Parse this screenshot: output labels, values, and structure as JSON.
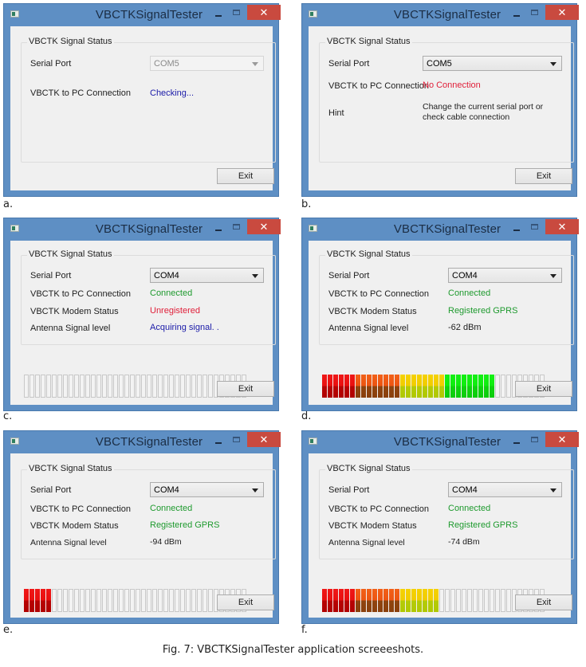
{
  "figure": {
    "caption": "Fig. 7: VBCTKSignalTester application screeeshots."
  },
  "common": {
    "window_title": "VBCTKSignalTester",
    "close_glyph": "✕",
    "group_title": "VBCTK Signal Status",
    "exit_label": "Exit",
    "signal_segments_total": 40,
    "colors": {
      "titlebar": "#5e8fc4",
      "close_button": "#c94a3f",
      "status_blue": "#1a1aa8",
      "status_red": "#e0203a",
      "status_green": "#1e9a2e"
    }
  },
  "panels": [
    {
      "label": "a.",
      "serial_port_label": "Serial Port",
      "serial_port_value": "COM5",
      "serial_port_disabled": true,
      "rows": [
        {
          "label": "VBCTK to PC Connection",
          "value": "Checking...",
          "color": "blue"
        }
      ],
      "signal_bar": null
    },
    {
      "label": "b.",
      "serial_port_label": "Serial Port",
      "serial_port_value": "COM5",
      "serial_port_disabled": false,
      "rows": [
        {
          "label": "VBCTK to PC Connection",
          "value": "No Connection",
          "color": "red"
        },
        {
          "label": "Hint",
          "value_line1": "Change the current serial port or",
          "value_line2": "check cable connection",
          "color": "black"
        }
      ],
      "signal_bar": null
    },
    {
      "label": "c.",
      "serial_port_label": "Serial Port",
      "serial_port_value": "COM4",
      "rows": [
        {
          "label": "VBCTK to PC Connection",
          "value": "Connected",
          "color": "green"
        },
        {
          "label": "VBCTK Modem Status",
          "value": "Unregistered",
          "color": "red"
        },
        {
          "label": "Antenna Signal level",
          "value": "Acquiring signal. .",
          "color": "blue"
        }
      ],
      "signal_bar": {
        "red": 0,
        "orange": 0,
        "yellow": 0,
        "green": 0,
        "lit": 0
      }
    },
    {
      "label": "d.",
      "serial_port_label": "Serial Port",
      "serial_port_value": "COM4",
      "rows": [
        {
          "label": "VBCTK to PC Connection",
          "value": "Connected",
          "color": "green"
        },
        {
          "label": "VBCTK Modem Status",
          "value": "Registered GPRS",
          "color": "green"
        },
        {
          "label": "Antenna Signal level",
          "value": "-62 dBm",
          "color": "black"
        }
      ],
      "signal_bar": {
        "red": 6,
        "orange": 8,
        "yellow": 8,
        "green": 9,
        "lit": 31
      }
    },
    {
      "label": "e.",
      "serial_port_label": "Serial Port",
      "serial_port_value": "COM4",
      "rows": [
        {
          "label": "VBCTK to PC Connection",
          "value": "Connected",
          "color": "green"
        },
        {
          "label": "VBCTK Modem Status",
          "value": "Registered GPRS",
          "color": "green"
        },
        {
          "label": "Antenna Signal level",
          "value": "-94 dBm",
          "color": "black"
        }
      ],
      "signal_bar": {
        "red": 5,
        "orange": 0,
        "yellow": 0,
        "green": 0,
        "lit": 5
      }
    },
    {
      "label": "f.",
      "serial_port_label": "Serial Port",
      "serial_port_value": "COM4",
      "rows": [
        {
          "label": "VBCTK to PC Connection",
          "value": "Connected",
          "color": "green"
        },
        {
          "label": "VBCTK Modem Status",
          "value": "Registered GPRS",
          "color": "green"
        },
        {
          "label": "Antenna Signal level",
          "value": "-74 dBm",
          "color": "black"
        }
      ],
      "signal_bar": {
        "red": 6,
        "orange": 8,
        "yellow": 7,
        "green": 0,
        "lit": 21
      }
    }
  ]
}
